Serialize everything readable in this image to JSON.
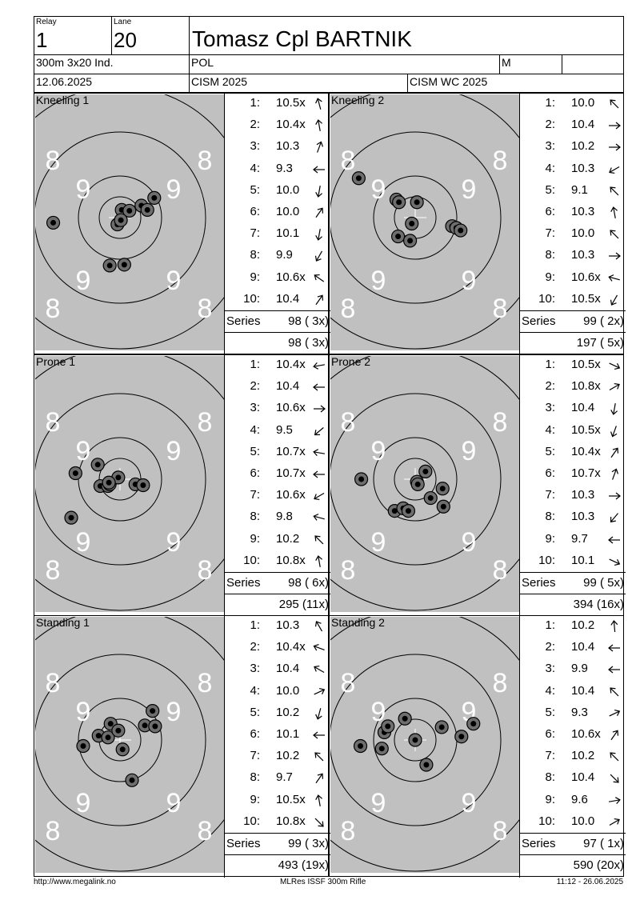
{
  "header": {
    "relay_label": "Relay",
    "relay": "1",
    "lane_label": "Lane",
    "lane": "20",
    "name": "Tomasz Cpl BARTNIK",
    "event": "300m 3x20 Ind.",
    "nation": "POL",
    "gender": "M",
    "date": "12.06.2025",
    "competition": "CISM 2025",
    "championship": "CISM WC 2025"
  },
  "ring_labels": {
    "eight": "8",
    "nine": "9"
  },
  "series_label": "Series",
  "colors": {
    "target_bg": "#c0c0c0",
    "ring": "#000000",
    "ring_label": "#ffffff",
    "shot_hole": "#6e6e6e"
  },
  "targets": [
    {
      "title": "Kneeling 1",
      "shots": [
        {
          "n": "1:",
          "v": "10.5x",
          "a": "arrow-up-left-small-icon",
          "dir": -105
        },
        {
          "n": "2:",
          "v": "10.4x",
          "a": "arrow-up-icon",
          "dir": -100
        },
        {
          "n": "3:",
          "v": "10.3",
          "a": "arrow-up-right-icon",
          "dir": -70
        },
        {
          "n": "4:",
          "v": "9.3",
          "a": "arrow-left-icon",
          "dir": 180
        },
        {
          "n": "5:",
          "v": "10.0",
          "a": "arrow-down-icon",
          "dir": 100
        },
        {
          "n": "6:",
          "v": "10.0",
          "a": "arrow-up-right-icon",
          "dir": -55
        },
        {
          "n": "7:",
          "v": "10.1",
          "a": "arrow-down-icon",
          "dir": 100
        },
        {
          "n": "8:",
          "v": "9.9",
          "a": "arrow-down-left-icon",
          "dir": 120
        },
        {
          "n": "9:",
          "v": "10.6x",
          "a": "arrow-up-left-icon",
          "dir": -145
        },
        {
          "n": "10:",
          "v": "10.4",
          "a": "arrow-up-right-icon",
          "dir": -55
        }
      ],
      "series": "98 ( 3x)",
      "total": "98 ( 3x)",
      "holes": [
        [
          -0.78,
          0.06
        ],
        [
          0.02,
          -0.09
        ],
        [
          0.11,
          -0.08
        ],
        [
          0.25,
          -0.14
        ],
        [
          0.32,
          -0.09
        ],
        [
          0.4,
          -0.23
        ],
        [
          -0.03,
          0.08
        ],
        [
          0.01,
          0.03
        ],
        [
          -0.12,
          0.56
        ],
        [
          0.05,
          0.55
        ]
      ]
    },
    {
      "title": "Kneeling 2",
      "shots": [
        {
          "n": "1:",
          "v": "10.0",
          "a": "arrow-up-left-icon",
          "dir": -135
        },
        {
          "n": "2:",
          "v": "10.4",
          "a": "arrow-right-icon",
          "dir": 0
        },
        {
          "n": "3:",
          "v": "10.2",
          "a": "arrow-right-icon",
          "dir": 0
        },
        {
          "n": "4:",
          "v": "10.3",
          "a": "arrow-down-left-icon",
          "dir": 150
        },
        {
          "n": "5:",
          "v": "9.1",
          "a": "arrow-up-left-icon",
          "dir": -135
        },
        {
          "n": "6:",
          "v": "10.3",
          "a": "arrow-up-icon",
          "dir": -100
        },
        {
          "n": "7:",
          "v": "10.0",
          "a": "arrow-up-left-icon",
          "dir": -135
        },
        {
          "n": "8:",
          "v": "10.3",
          "a": "arrow-right-icon",
          "dir": 0
        },
        {
          "n": "9:",
          "v": "10.6x",
          "a": "arrow-left-icon",
          "dir": -165
        },
        {
          "n": "10:",
          "v": "10.5x",
          "a": "arrow-down-left-icon",
          "dir": 120
        }
      ],
      "series": "99 ( 2x)",
      "total": "197 ( 5x)",
      "holes": [
        [
          -0.66,
          -0.46
        ],
        [
          -0.22,
          -0.21
        ],
        [
          -0.19,
          -0.18
        ],
        [
          0.02,
          -0.18
        ],
        [
          -0.04,
          0.07
        ],
        [
          -0.2,
          0.22
        ],
        [
          -0.06,
          0.27
        ],
        [
          0.43,
          0.1
        ],
        [
          0.48,
          0.12
        ],
        [
          0.53,
          0.15
        ]
      ]
    },
    {
      "title": "Prone 1",
      "shots": [
        {
          "n": "1:",
          "v": "10.4x",
          "a": "arrow-left-icon",
          "dir": 170
        },
        {
          "n": "2:",
          "v": "10.4",
          "a": "arrow-left-icon",
          "dir": 180
        },
        {
          "n": "3:",
          "v": "10.6x",
          "a": "arrow-right-icon",
          "dir": 0
        },
        {
          "n": "4:",
          "v": "9.5",
          "a": "arrow-down-left-icon",
          "dir": 140
        },
        {
          "n": "5:",
          "v": "10.7x",
          "a": "arrow-left-icon",
          "dir": -170
        },
        {
          "n": "6:",
          "v": "10.7x",
          "a": "arrow-left-icon",
          "dir": 180
        },
        {
          "n": "7:",
          "v": "10.6x",
          "a": "arrow-down-left-icon",
          "dir": 150
        },
        {
          "n": "8:",
          "v": "9.8",
          "a": "arrow-left-icon",
          "dir": -165
        },
        {
          "n": "9:",
          "v": "10.2",
          "a": "arrow-up-left-icon",
          "dir": -135
        },
        {
          "n": "10:",
          "v": "10.8x",
          "a": "arrow-up-icon",
          "dir": -100
        }
      ],
      "series": "98 ( 6x)",
      "total": "295 (11x)",
      "holes": [
        [
          -0.52,
          -0.07
        ],
        [
          -0.26,
          -0.17
        ],
        [
          -0.23,
          0.08
        ],
        [
          -0.14,
          0.08
        ],
        [
          -0.12,
          0.06
        ],
        [
          -0.02,
          -0.02
        ],
        [
          0.18,
          0.06
        ],
        [
          0.27,
          0.07
        ],
        [
          -0.57,
          0.45
        ],
        [
          -0.13,
          0.04
        ]
      ]
    },
    {
      "title": "Prone 2",
      "shots": [
        {
          "n": "1:",
          "v": "10.5x",
          "a": "arrow-down-right-icon",
          "dir": 25
        },
        {
          "n": "2:",
          "v": "10.8x",
          "a": "arrow-up-right-icon",
          "dir": -30
        },
        {
          "n": "3:",
          "v": "10.4",
          "a": "arrow-down-icon",
          "dir": 100
        },
        {
          "n": "4:",
          "v": "10.5x",
          "a": "arrow-down-icon",
          "dir": 110
        },
        {
          "n": "5:",
          "v": "10.4x",
          "a": "arrow-up-right-icon",
          "dir": -55
        },
        {
          "n": "6:",
          "v": "10.7x",
          "a": "arrow-up-right-icon",
          "dir": -70
        },
        {
          "n": "7:",
          "v": "10.3",
          "a": "arrow-right-icon",
          "dir": 0
        },
        {
          "n": "8:",
          "v": "10.3",
          "a": "arrow-down-left-icon",
          "dir": 130
        },
        {
          "n": "9:",
          "v": "9.7",
          "a": "arrow-left-icon",
          "dir": 180
        },
        {
          "n": "10:",
          "v": "10.1",
          "a": "arrow-down-right-icon",
          "dir": 25
        }
      ],
      "series": "99 ( 5x)",
      "total": "394 (16x)",
      "holes": [
        [
          -0.63,
          0.0
        ],
        [
          -0.24,
          0.37
        ],
        [
          -0.14,
          0.34
        ],
        [
          -0.08,
          0.37
        ],
        [
          0.02,
          0.03
        ],
        [
          0.03,
          0.06
        ],
        [
          0.12,
          -0.09
        ],
        [
          0.18,
          0.22
        ],
        [
          0.32,
          0.11
        ],
        [
          0.33,
          0.32
        ]
      ]
    },
    {
      "title": "Standing 1",
      "shots": [
        {
          "n": "1:",
          "v": "10.3",
          "a": "arrow-up-left-icon",
          "dir": -120
        },
        {
          "n": "2:",
          "v": "10.4x",
          "a": "arrow-up-left-icon",
          "dir": -160
        },
        {
          "n": "3:",
          "v": "10.4",
          "a": "arrow-up-left-icon",
          "dir": -150
        },
        {
          "n": "4:",
          "v": "10.0",
          "a": "arrow-up-right-icon",
          "dir": -25
        },
        {
          "n": "5:",
          "v": "10.2",
          "a": "arrow-down-icon",
          "dir": 105
        },
        {
          "n": "6:",
          "v": "10.1",
          "a": "arrow-left-icon",
          "dir": 180
        },
        {
          "n": "7:",
          "v": "10.2",
          "a": "arrow-up-left-icon",
          "dir": -135
        },
        {
          "n": "8:",
          "v": "9.7",
          "a": "arrow-up-right-icon",
          "dir": -55
        },
        {
          "n": "9:",
          "v": "10.5x",
          "a": "arrow-up-icon",
          "dir": -100
        },
        {
          "n": "10:",
          "v": "10.8x",
          "a": "arrow-down-right-icon",
          "dir": 45
        }
      ],
      "series": "99 ( 3x)",
      "total": "493 (19x)",
      "holes": [
        [
          -0.43,
          0.07
        ],
        [
          -0.25,
          -0.05
        ],
        [
          -0.14,
          -0.03
        ],
        [
          -0.11,
          -0.19
        ],
        [
          -0.02,
          -0.11
        ],
        [
          0.03,
          0.11
        ],
        [
          0.29,
          -0.17
        ],
        [
          0.38,
          -0.34
        ],
        [
          0.41,
          -0.16
        ],
        [
          0.14,
          0.47
        ]
      ]
    },
    {
      "title": "Standing 2",
      "shots": [
        {
          "n": "1:",
          "v": "10.2",
          "a": "arrow-up-icon",
          "dir": -95
        },
        {
          "n": "2:",
          "v": "10.4",
          "a": "arrow-left-icon",
          "dir": 180
        },
        {
          "n": "3:",
          "v": "9.9",
          "a": "arrow-left-icon",
          "dir": 180
        },
        {
          "n": "4:",
          "v": "10.4",
          "a": "arrow-up-left-icon",
          "dir": -135
        },
        {
          "n": "5:",
          "v": "9.3",
          "a": "arrow-up-right-icon",
          "dir": -25
        },
        {
          "n": "6:",
          "v": "10.6x",
          "a": "arrow-up-right-icon",
          "dir": -55
        },
        {
          "n": "7:",
          "v": "10.2",
          "a": "arrow-up-left-icon",
          "dir": -135
        },
        {
          "n": "8:",
          "v": "10.4",
          "a": "arrow-down-right-icon",
          "dir": 45
        },
        {
          "n": "9:",
          "v": "9.6",
          "a": "arrow-right-icon",
          "dir": -10
        },
        {
          "n": "10:",
          "v": "10.0",
          "a": "arrow-up-right-icon",
          "dir": -30
        }
      ],
      "series": "97 ( 1x)",
      "total": "590 (20x)",
      "holes": [
        [
          -0.64,
          0.07
        ],
        [
          -0.36,
          -0.09
        ],
        [
          -0.32,
          -0.16
        ],
        [
          -0.39,
          0.1
        ],
        [
          -0.12,
          -0.25
        ],
        [
          0.0,
          0.0
        ],
        [
          0.13,
          0.29
        ],
        [
          0.31,
          -0.15
        ],
        [
          0.54,
          -0.04
        ],
        [
          0.68,
          -0.19
        ]
      ]
    }
  ],
  "footer": {
    "website": "http://www.megalink.no",
    "software": "MLRes ISSF 300m Rifle",
    "timestamp": "11:12 - 26.06.2025"
  }
}
